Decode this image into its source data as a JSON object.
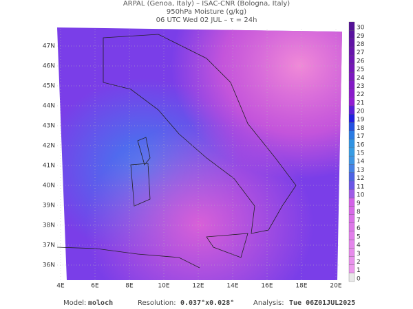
{
  "header": {
    "line1": "ARPAL (Genoa, Italy)  –  ISAC-CNR (Bologna, Italy)",
    "line2": "950hPa Moisture (g/kg)",
    "line3": "06 UTC Wed 02 JUL  –  τ = 24h"
  },
  "map": {
    "lon_labels": [
      "4E",
      "6E",
      "8E",
      "10E",
      "12E",
      "14E",
      "16E",
      "18E",
      "20E"
    ],
    "lat_labels": [
      "47N",
      "46N",
      "45N",
      "44N",
      "43N",
      "42N",
      "41N",
      "40N",
      "39N",
      "38N",
      "37N",
      "36N"
    ]
  },
  "colorbar": {
    "labels": [
      0,
      1,
      2,
      3,
      4,
      5,
      6,
      7,
      8,
      9,
      10,
      11,
      12,
      13,
      14,
      15,
      16,
      17,
      18,
      19,
      20,
      21,
      22,
      23,
      24,
      25,
      26,
      27,
      28,
      29,
      30
    ]
  },
  "footer": {
    "model_label": "Model:",
    "model": "moloch",
    "resolution_label": "Resolution:",
    "resolution": "0.037°x0.028°",
    "analysis_label": "Analysis:",
    "analysis": "Tue 06Z01JUL2025"
  }
}
